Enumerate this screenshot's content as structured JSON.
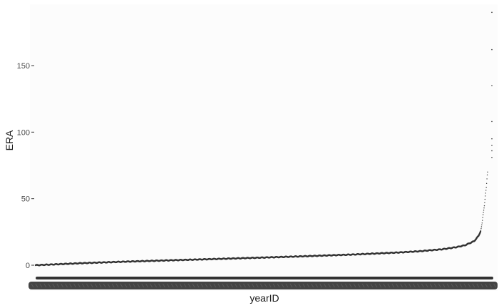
{
  "chart_data": {
    "type": "scatter",
    "title": "",
    "xlabel": "yearID",
    "ylabel": "ERA",
    "ylim": [
      -4,
      195
    ],
    "y_ticks": [
      0,
      50,
      100,
      150
    ],
    "y_tick_labels": [
      "0",
      "50",
      "100",
      "150"
    ],
    "x_tick_labels_legible": false,
    "grid": false,
    "legend": "none",
    "colors": {
      "points": "#333333",
      "panel": "#fcfcfc",
      "axis_text": "#4d4d4d"
    },
    "series": [
      {
        "sorted_era_profile": {
          "rank_fraction": [
            0.0,
            0.1,
            0.2,
            0.3,
            0.4,
            0.5,
            0.6,
            0.7,
            0.8,
            0.85,
            0.9,
            0.93,
            0.95,
            0.97,
            0.975,
            0.98,
            0.985,
            0.988,
            0.99,
            0.993,
            0.995,
            0.997,
            0.998,
            0.999,
            1.0
          ],
          "values": [
            0.0,
            1.5,
            2.7,
            3.7,
            4.7,
            5.7,
            6.8,
            8.0,
            9.5,
            10.5,
            12.0,
            13.5,
            15.0,
            18.0,
            20.0,
            22.0,
            26.0,
            32.0,
            38.0,
            45.0,
            52.0,
            58.0,
            62.0,
            67.0,
            70.0
          ]
        },
        "outliers": [
          81,
          86,
          90,
          95,
          108,
          135,
          162,
          190
        ]
      }
    ]
  }
}
